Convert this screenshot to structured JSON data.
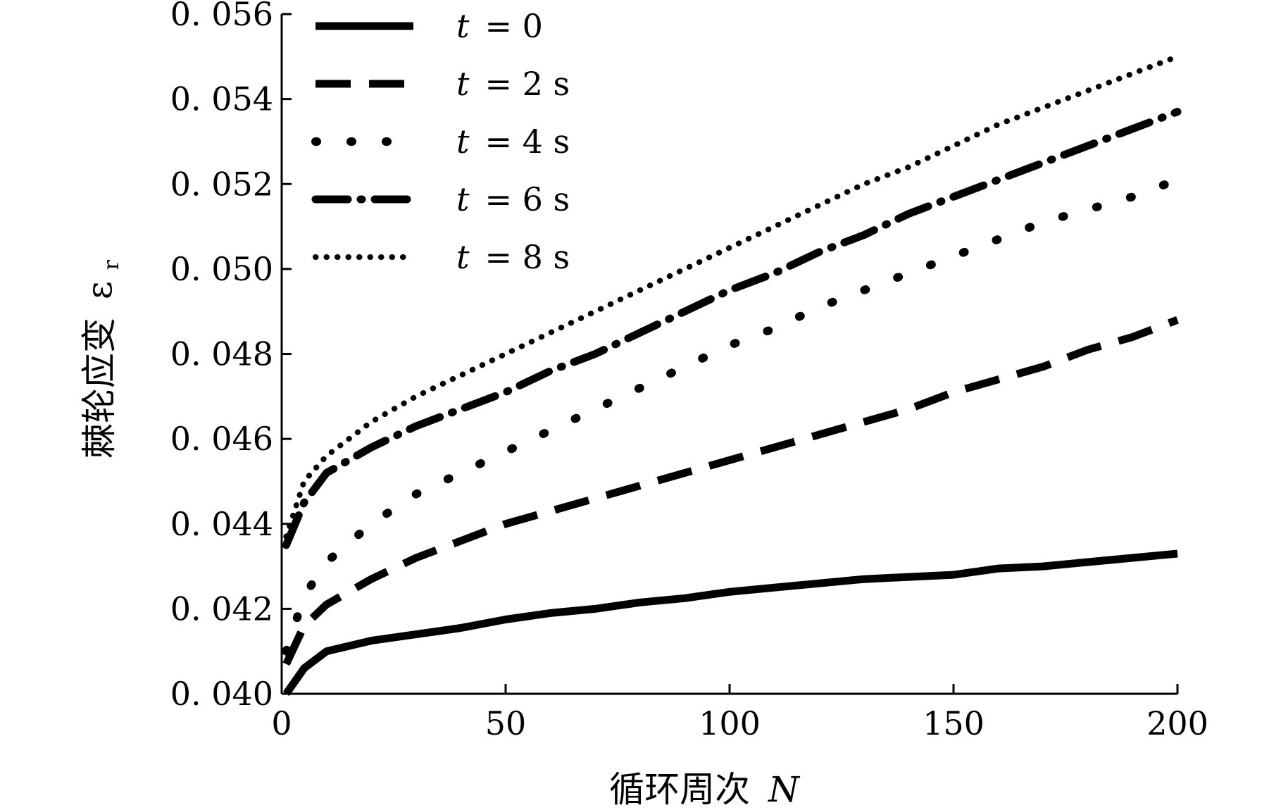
{
  "chart_data": {
    "type": "line",
    "xlabel": "循环周次",
    "xlabel_var": "N",
    "ylabel": "棘轮应变",
    "ylabel_var": "ε",
    "ylabel_sub": "r",
    "xlim": [
      0,
      200
    ],
    "ylim": [
      0.04,
      0.056
    ],
    "x_ticks": [
      "0",
      "50",
      "100",
      "150",
      "200"
    ],
    "y_ticks": [
      "0. 040",
      "0. 042",
      "0. 044",
      "0. 046",
      "0. 048",
      "0. 050",
      "0. 052",
      "0. 054",
      "0. 056"
    ],
    "grid": false,
    "legend_position": "top-left",
    "series": [
      {
        "name": "t = 0",
        "name_var": "t",
        "name_rest": "= 0",
        "style": "solid",
        "x": [
          1,
          5,
          10,
          20,
          30,
          40,
          50,
          60,
          70,
          80,
          90,
          100,
          110,
          120,
          130,
          140,
          150,
          160,
          170,
          180,
          190,
          200
        ],
        "y": [
          0.04,
          0.0406,
          0.041,
          0.04125,
          0.0414,
          0.04155,
          0.04175,
          0.0419,
          0.042,
          0.04215,
          0.04225,
          0.0424,
          0.0425,
          0.0426,
          0.0427,
          0.04275,
          0.0428,
          0.04295,
          0.043,
          0.0431,
          0.0432,
          0.0433
        ]
      },
      {
        "name": "t = 2 s",
        "name_var": "t",
        "name_rest": "= 2 s",
        "style": "dashed",
        "x": [
          1,
          5,
          10,
          20,
          30,
          40,
          50,
          60,
          70,
          80,
          90,
          100,
          110,
          120,
          130,
          140,
          150,
          160,
          170,
          180,
          190,
          200
        ],
        "y": [
          0.0407,
          0.0416,
          0.0421,
          0.0427,
          0.0432,
          0.0436,
          0.044,
          0.0443,
          0.0446,
          0.0449,
          0.0452,
          0.0455,
          0.0458,
          0.0461,
          0.0464,
          0.0467,
          0.0471,
          0.0474,
          0.0477,
          0.0481,
          0.0484,
          0.0488
        ]
      },
      {
        "name": "t = 4 s",
        "name_var": "t",
        "name_rest": "= 4 s",
        "style": "dotted-heavy",
        "x": [
          1,
          5,
          10,
          20,
          30,
          40,
          50,
          60,
          70,
          80,
          90,
          100,
          110,
          120,
          130,
          140,
          150,
          160,
          170,
          180,
          190,
          200
        ],
        "y": [
          0.041,
          0.0423,
          0.0431,
          0.044,
          0.0447,
          0.0452,
          0.0457,
          0.0462,
          0.0467,
          0.0472,
          0.0477,
          0.0482,
          0.0486,
          0.0491,
          0.0495,
          0.0499,
          0.0503,
          0.0507,
          0.0511,
          0.0514,
          0.0517,
          0.0521
        ]
      },
      {
        "name": "t = 6 s",
        "name_var": "t",
        "name_rest": "= 6 s",
        "style": "dash-dot",
        "x": [
          1,
          5,
          10,
          20,
          30,
          40,
          50,
          60,
          70,
          80,
          90,
          100,
          110,
          120,
          130,
          140,
          150,
          160,
          170,
          180,
          190,
          200
        ],
        "y": [
          0.0435,
          0.0445,
          0.0452,
          0.0458,
          0.0463,
          0.0467,
          0.0471,
          0.0476,
          0.048,
          0.0485,
          0.049,
          0.0495,
          0.0499,
          0.0504,
          0.0508,
          0.0513,
          0.0517,
          0.0521,
          0.0525,
          0.0529,
          0.0533,
          0.0537
        ]
      },
      {
        "name": "t = 8 s",
        "name_var": "t",
        "name_rest": "= 8 s",
        "style": "dotted-fine",
        "x": [
          1,
          5,
          10,
          20,
          30,
          40,
          50,
          60,
          70,
          80,
          90,
          100,
          110,
          120,
          130,
          140,
          150,
          160,
          170,
          180,
          190,
          200
        ],
        "y": [
          0.0437,
          0.045,
          0.0456,
          0.0464,
          0.047,
          0.0475,
          0.048,
          0.0485,
          0.049,
          0.0495,
          0.05,
          0.0505,
          0.051,
          0.0515,
          0.052,
          0.0524,
          0.0529,
          0.0534,
          0.0538,
          0.0542,
          0.0546,
          0.055
        ]
      }
    ]
  }
}
